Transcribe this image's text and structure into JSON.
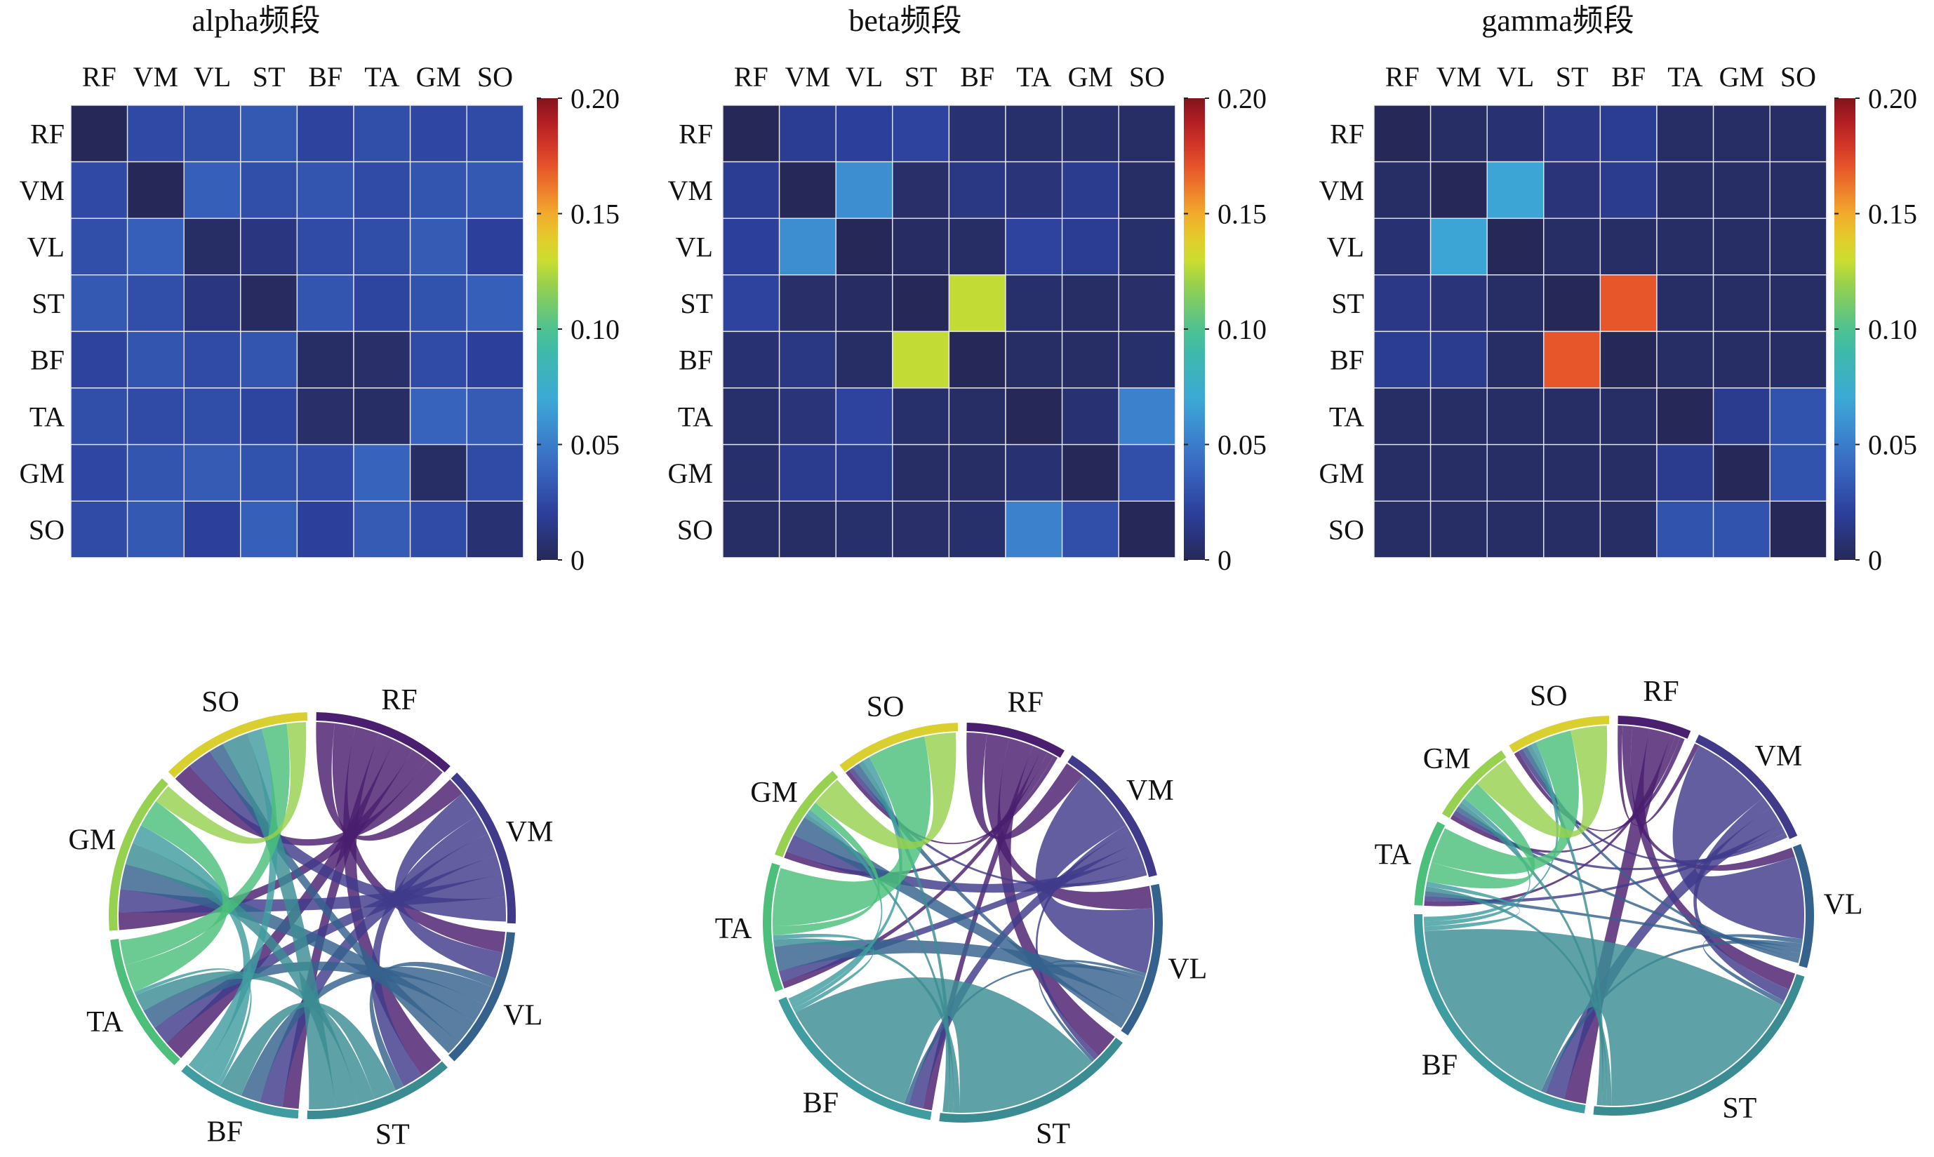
{
  "muscles": [
    "RF",
    "VM",
    "VL",
    "ST",
    "BF",
    "TA",
    "GM",
    "SO"
  ],
  "colorbar": {
    "ticks": [
      "0.20",
      "0.15",
      "0.10",
      "0.05",
      "0"
    ],
    "min": 0,
    "max": 0.2,
    "colormap": "parula-like (dark blue to dark red)"
  },
  "chord_colors": {
    "RF": "#4b1f6f",
    "VM": "#3f3b8a",
    "VL": "#35628d",
    "ST": "#3a8c92",
    "BF": "#3f9ca0",
    "TA": "#4cc07a",
    "GM": "#96d14f",
    "SO": "#d9d02f"
  },
  "chart_data": [
    {
      "type": "heatmap",
      "title": "alpha频段",
      "row_labels": [
        "RF",
        "VM",
        "VL",
        "ST",
        "BF",
        "TA",
        "GM",
        "SO"
      ],
      "col_labels": [
        "RF",
        "VM",
        "VL",
        "ST",
        "BF",
        "TA",
        "GM",
        "SO"
      ],
      "values": [
        [
          0.0,
          0.025,
          0.028,
          0.033,
          0.022,
          0.028,
          0.024,
          0.026
        ],
        [
          0.025,
          0.0,
          0.036,
          0.028,
          0.031,
          0.026,
          0.031,
          0.033
        ],
        [
          0.028,
          0.036,
          0.004,
          0.012,
          0.026,
          0.027,
          0.034,
          0.02
        ],
        [
          0.033,
          0.028,
          0.012,
          0.002,
          0.031,
          0.023,
          0.03,
          0.036
        ],
        [
          0.022,
          0.031,
          0.026,
          0.031,
          0.004,
          0.005,
          0.026,
          0.02
        ],
        [
          0.028,
          0.026,
          0.027,
          0.023,
          0.005,
          0.004,
          0.038,
          0.034
        ],
        [
          0.024,
          0.031,
          0.034,
          0.03,
          0.026,
          0.038,
          0.004,
          0.026
        ],
        [
          0.026,
          0.033,
          0.02,
          0.036,
          0.02,
          0.034,
          0.026,
          0.008
        ]
      ],
      "vmin": 0,
      "vmax": 0.2
    },
    {
      "type": "heatmap",
      "title": "beta频段",
      "row_labels": [
        "RF",
        "VM",
        "VL",
        "ST",
        "BF",
        "TA",
        "GM",
        "SO"
      ],
      "col_labels": [
        "RF",
        "VM",
        "VL",
        "ST",
        "BF",
        "TA",
        "GM",
        "SO"
      ],
      "values": [
        [
          0.0,
          0.018,
          0.02,
          0.022,
          0.008,
          0.006,
          0.006,
          0.004
        ],
        [
          0.018,
          0.0,
          0.058,
          0.005,
          0.013,
          0.01,
          0.016,
          0.004
        ],
        [
          0.02,
          0.058,
          0.0,
          0.003,
          0.004,
          0.022,
          0.018,
          0.006
        ],
        [
          0.022,
          0.005,
          0.003,
          0.0,
          0.128,
          0.006,
          0.004,
          0.005
        ],
        [
          0.008,
          0.013,
          0.004,
          0.128,
          0.0,
          0.004,
          0.004,
          0.006
        ],
        [
          0.006,
          0.01,
          0.022,
          0.006,
          0.004,
          0.0,
          0.008,
          0.052
        ],
        [
          0.006,
          0.016,
          0.018,
          0.004,
          0.004,
          0.008,
          0.0,
          0.028
        ],
        [
          0.004,
          0.004,
          0.006,
          0.005,
          0.006,
          0.052,
          0.028,
          0.0
        ]
      ],
      "vmin": 0,
      "vmax": 0.2
    },
    {
      "type": "heatmap",
      "title": "gamma频段",
      "row_labels": [
        "RF",
        "VM",
        "VL",
        "ST",
        "BF",
        "TA",
        "GM",
        "SO"
      ],
      "col_labels": [
        "RF",
        "VM",
        "VL",
        "ST",
        "BF",
        "TA",
        "GM",
        "SO"
      ],
      "values": [
        [
          0.0,
          0.004,
          0.008,
          0.014,
          0.018,
          0.004,
          0.004,
          0.004
        ],
        [
          0.004,
          0.0,
          0.068,
          0.01,
          0.016,
          0.004,
          0.004,
          0.004
        ],
        [
          0.008,
          0.068,
          0.0,
          0.004,
          0.004,
          0.004,
          0.004,
          0.004
        ],
        [
          0.014,
          0.01,
          0.004,
          0.0,
          0.17,
          0.004,
          0.004,
          0.004
        ],
        [
          0.018,
          0.016,
          0.004,
          0.17,
          0.0,
          0.004,
          0.004,
          0.004
        ],
        [
          0.004,
          0.004,
          0.004,
          0.004,
          0.004,
          0.0,
          0.016,
          0.03
        ],
        [
          0.004,
          0.004,
          0.004,
          0.004,
          0.004,
          0.016,
          0.0,
          0.03
        ],
        [
          0.004,
          0.004,
          0.004,
          0.004,
          0.004,
          0.03,
          0.03,
          0.0
        ]
      ],
      "vmin": 0,
      "vmax": 0.2
    },
    {
      "type": "chord",
      "labels": [
        "RF",
        "VM",
        "VL",
        "ST",
        "BF",
        "TA",
        "GM",
        "SO"
      ],
      "values_source": "alpha频段"
    },
    {
      "type": "chord",
      "labels": [
        "RF",
        "VM",
        "VL",
        "ST",
        "BF",
        "TA",
        "GM",
        "SO"
      ],
      "values_source": "beta频段"
    },
    {
      "type": "chord",
      "labels": [
        "RF",
        "VM",
        "VL",
        "ST",
        "BF",
        "TA",
        "GM",
        "SO"
      ],
      "values_source": "gamma频段"
    }
  ]
}
